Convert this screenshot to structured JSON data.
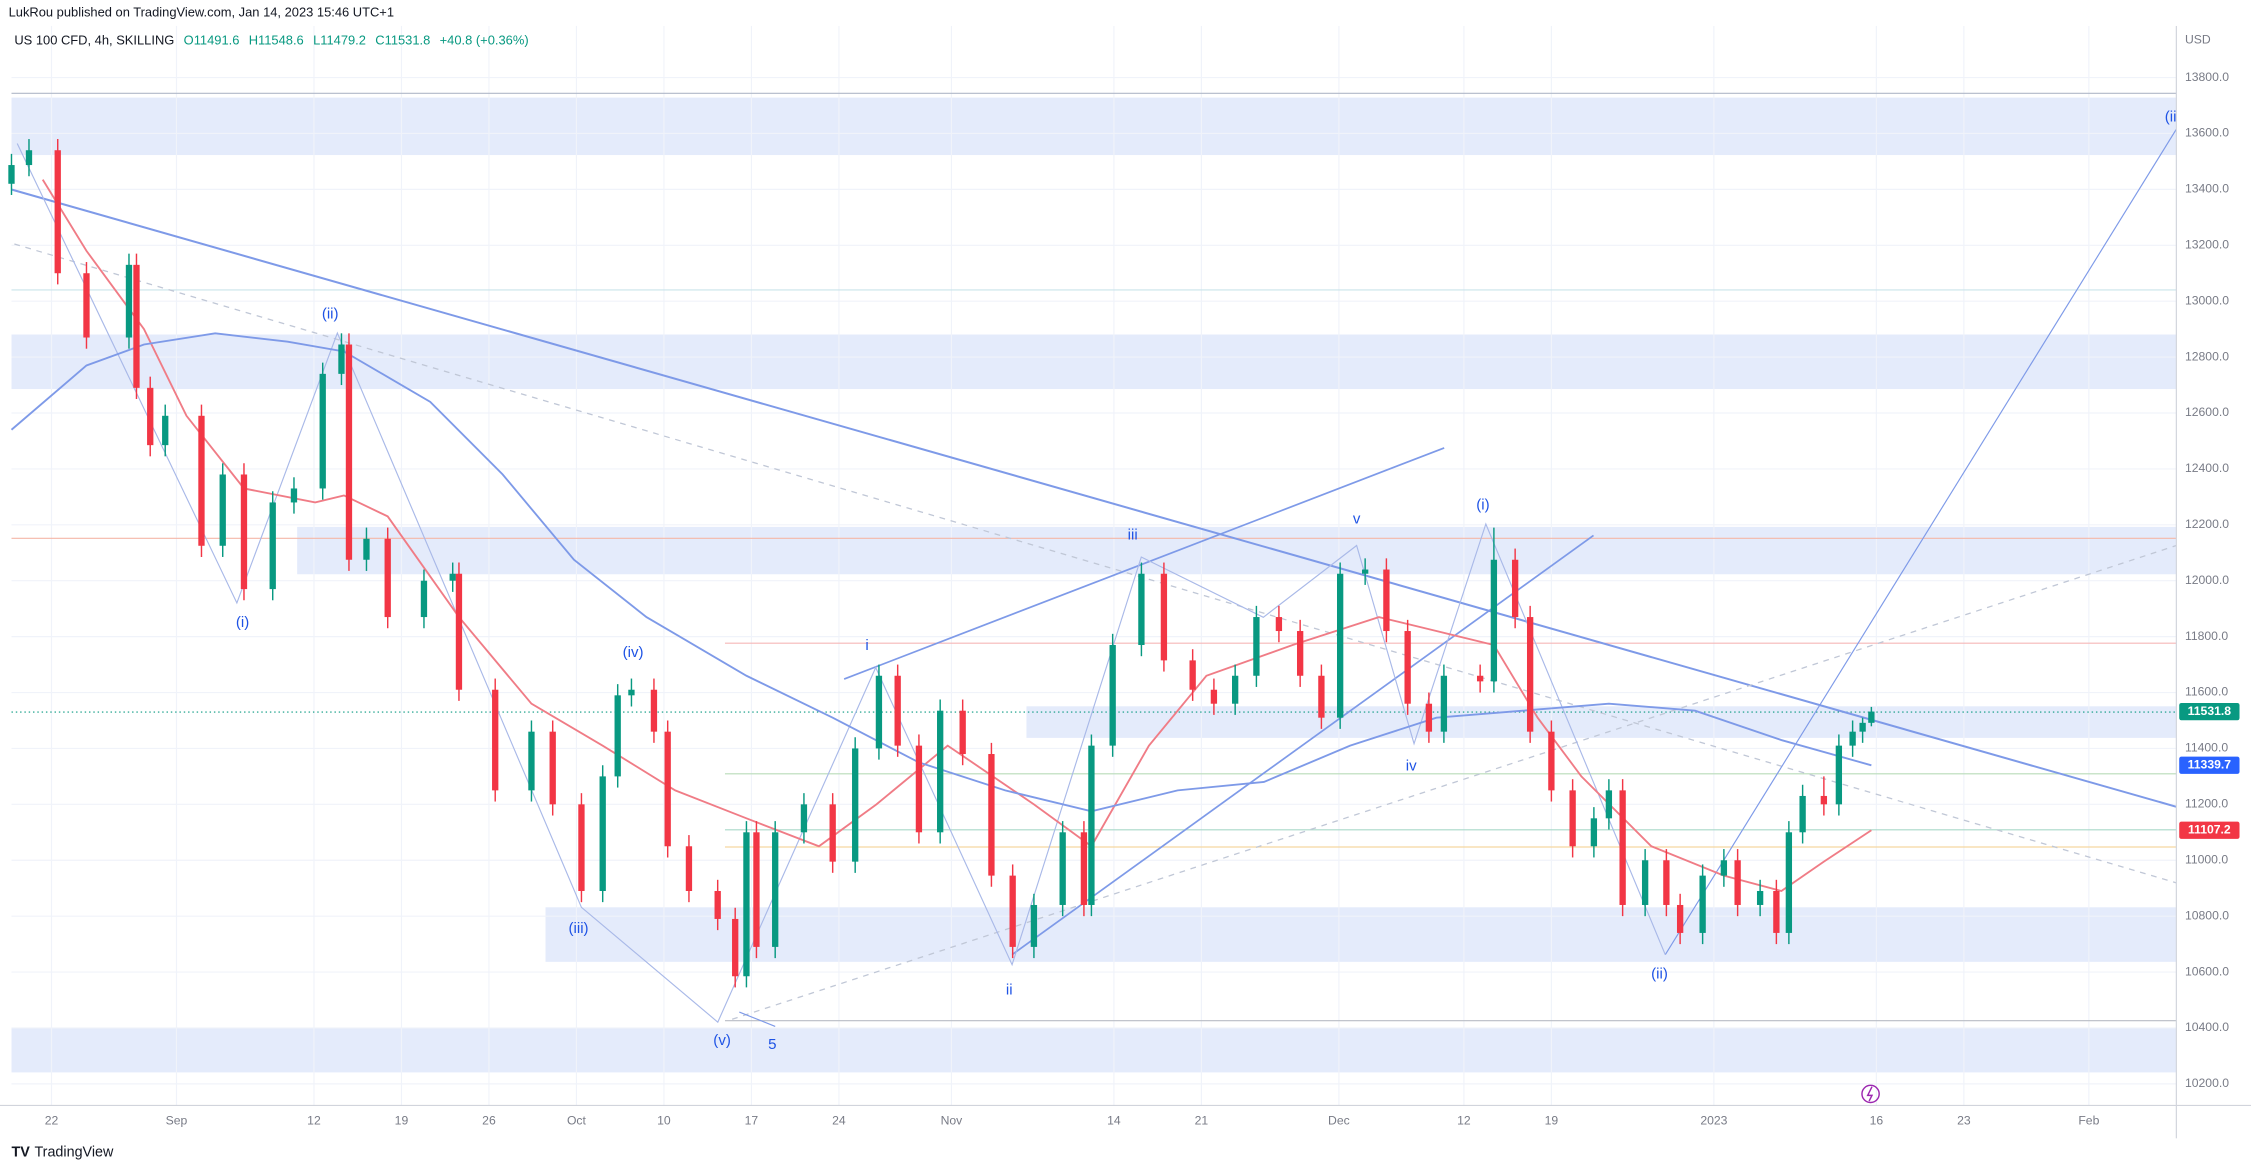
{
  "header": {
    "publisher": "LukRou published on TradingView.com, Jan 14, 2023 15:46 UTC+1",
    "symbol": "US 100 CFD, 4h, SKILLING",
    "ohlc": [
      "O11491.6",
      "H11548.6",
      "L11479.2",
      "C11531.8"
    ],
    "change": "+40.8 (+0.36%)"
  },
  "chart_data": {
    "type": "candlestick",
    "currency": "USD",
    "x": [
      -3.2,
      -1.8,
      0.5,
      2.8,
      6.2,
      6.8,
      7.9,
      9.1,
      12.0,
      13.7,
      15.4,
      17.7,
      19.4,
      21.7,
      23.2,
      23.8,
      25.2,
      26.9,
      29.8,
      32.1,
      32.6,
      35.5,
      38.4,
      40.1,
      42.4,
      44.1,
      45.3,
      46.4,
      48.2,
      49.3,
      51.0,
      53.3,
      54.7,
      55.6,
      56.4,
      57.9,
      60.2,
      62.5,
      64.3,
      66.2,
      67.7,
      69.4,
      71.1,
      72.9,
      75.2,
      76.9,
      78.6,
      80.9,
      82.6,
      83.2,
      84.9,
      87.2,
      89.0,
      91.3,
      93.0,
      94.7,
      96.4,
      98.2,
      99.9,
      101.6,
      103.1,
      105.1,
      106.8,
      108.5,
      110.2,
      111.4,
      114.3,
      115.4,
      117.1,
      118.3,
      120.0,
      121.7,
      123.4,
      124.6,
      125.7,
      127.5,
      129.2,
      130.3,
      132.1,
      133.8,
      134.9,
      136.7,
      138.0,
      139.0,
      140.1,
      141.8,
      143.0,
      144.1,
      144.9,
      145.6
    ],
    "open": [
      13420,
      13487,
      13540,
      13100,
      12870,
      13130,
      12690,
      12485,
      12590,
      12125,
      12380,
      11970,
      12280,
      12330,
      12740,
      12845,
      12075,
      12150,
      11870,
      12000,
      12025,
      11610,
      11250,
      11460,
      11200,
      10890,
      11300,
      11590,
      11610,
      11460,
      11050,
      10890,
      10790,
      10585,
      11100,
      10690,
      11100,
      11200,
      10995,
      11400,
      11660,
      11410,
      11100,
      11535,
      11380,
      10945,
      10690,
      10840,
      11100,
      10840,
      11410,
      11770,
      12025,
      11715,
      11610,
      11560,
      11660,
      11870,
      11820,
      11660,
      11510,
      12025,
      12040,
      11820,
      11560,
      11460,
      11660,
      11640,
      12075,
      11870,
      11460,
      11250,
      11050,
      11150,
      11250,
      10840,
      11000,
      10840,
      10740,
      10945,
      11000,
      10840,
      10890,
      10740,
      11100,
      11230,
      11200,
      11410,
      11460,
      11491.6
    ],
    "high": [
      13527,
      13580,
      13580,
      13140,
      13170,
      13170,
      12730,
      12630,
      12630,
      12420,
      12420,
      12320,
      12370,
      12780,
      12885,
      12885,
      12190,
      12190,
      12040,
      12065,
      12065,
      11650,
      11500,
      11500,
      11240,
      11340,
      11630,
      11650,
      11650,
      11500,
      11090,
      10930,
      10830,
      11140,
      11140,
      11140,
      11240,
      11240,
      11440,
      11700,
      11700,
      11450,
      11575,
      11575,
      11420,
      10985,
      10880,
      11140,
      11140,
      11450,
      11810,
      12065,
      12065,
      11755,
      11650,
      11700,
      11910,
      11910,
      11860,
      11700,
      12065,
      12080,
      12080,
      11860,
      11600,
      11700,
      11700,
      12190,
      12115,
      11910,
      11500,
      11290,
      11190,
      11290,
      11290,
      11040,
      11040,
      10880,
      10985,
      11040,
      11040,
      10930,
      10930,
      11140,
      11270,
      11300,
      11450,
      11500,
      11510,
      11548.6
    ],
    "low": [
      13380,
      13447,
      13060,
      12830,
      12830,
      12650,
      12445,
      12445,
      12085,
      12085,
      11930,
      11930,
      12240,
      12290,
      12700,
      12035,
      12035,
      11830,
      11830,
      11960,
      11570,
      11210,
      11210,
      11160,
      10850,
      10850,
      11260,
      11550,
      11420,
      11010,
      10850,
      10750,
      10545,
      10545,
      10650,
      10650,
      11060,
      10955,
      10955,
      11360,
      11370,
      11060,
      11060,
      11340,
      10905,
      10650,
      10650,
      10800,
      10800,
      10800,
      11370,
      11730,
      11675,
      11570,
      11520,
      11520,
      11620,
      11780,
      11620,
      11470,
      11470,
      11985,
      11780,
      11520,
      11420,
      11420,
      11600,
      11600,
      11830,
      11420,
      11210,
      11010,
      11010,
      11110,
      10800,
      10800,
      10800,
      10700,
      10700,
      10905,
      10800,
      10800,
      10700,
      10700,
      11060,
      11160,
      11160,
      11370,
      11420,
      11479.2
    ],
    "close": [
      13487,
      13540,
      13100,
      12870,
      13130,
      12690,
      12485,
      12590,
      12125,
      12380,
      11970,
      12280,
      12330,
      12740,
      12845,
      12075,
      12150,
      11870,
      12000,
      12025,
      11610,
      11250,
      11460,
      11200,
      10890,
      11300,
      11590,
      11610,
      11460,
      11050,
      10890,
      10790,
      10585,
      11100,
      10690,
      11100,
      11200,
      10995,
      11400,
      11660,
      11410,
      11100,
      11535,
      11380,
      10945,
      10690,
      10840,
      11100,
      10840,
      11410,
      11770,
      12025,
      11715,
      11610,
      11560,
      11660,
      11870,
      11820,
      11660,
      11510,
      12025,
      12040,
      11820,
      11560,
      11460,
      11660,
      11640,
      12075,
      11870,
      11460,
      11250,
      11050,
      11150,
      11250,
      10840,
      11000,
      10840,
      10740,
      10945,
      11000,
      10840,
      10890,
      10740,
      11100,
      11230,
      11200,
      11410,
      11460,
      11491.6,
      11531.8
    ],
    "colors": {
      "up": "#089981",
      "down": "#f23645"
    },
    "xlim": [
      -3.2,
      170
    ],
    "ylim": [
      10123,
      13985
    ],
    "yticks": [
      {
        "value": 10200,
        "label": "10200.0"
      },
      {
        "value": 10400,
        "label": "10400.0"
      },
      {
        "value": 10600,
        "label": "10600.0"
      },
      {
        "value": 10800,
        "label": "10800.0"
      },
      {
        "value": 11000,
        "label": "11000.0"
      },
      {
        "value": 11200,
        "label": "11200.0"
      },
      {
        "value": 11400,
        "label": "11400.0"
      },
      {
        "value": 11600,
        "label": "11600.0"
      },
      {
        "value": 11800,
        "label": "11800.0"
      },
      {
        "value": 12000,
        "label": "12000.0"
      },
      {
        "value": 12200,
        "label": "12200.0"
      },
      {
        "value": 12400,
        "label": "12400.0"
      },
      {
        "value": 12600,
        "label": "12600.0"
      },
      {
        "value": 12800,
        "label": "12800.0"
      },
      {
        "value": 13000,
        "label": "13000.0"
      },
      {
        "value": 13200,
        "label": "13200.0"
      },
      {
        "value": 13400,
        "label": "13400.0"
      },
      {
        "value": 13600,
        "label": "13600.0"
      },
      {
        "value": 13800,
        "label": "13800.0"
      }
    ],
    "xticks": [
      {
        "value": 0,
        "label": "22"
      },
      {
        "value": 10,
        "label": "Sep"
      },
      {
        "value": 21,
        "label": "12"
      },
      {
        "value": 28,
        "label": "19"
      },
      {
        "value": 35,
        "label": "26"
      },
      {
        "value": 42,
        "label": "Oct"
      },
      {
        "value": 49,
        "label": "10"
      },
      {
        "value": 56,
        "label": "17"
      },
      {
        "value": 63,
        "label": "24"
      },
      {
        "value": 72,
        "label": "Nov"
      },
      {
        "value": 85,
        "label": "14"
      },
      {
        "value": 92,
        "label": "21"
      },
      {
        "value": 103,
        "label": "Dec"
      },
      {
        "value": 113,
        "label": "12"
      },
      {
        "value": 120,
        "label": "19"
      },
      {
        "value": 133,
        "label": "2023"
      },
      {
        "value": 146,
        "label": "16"
      },
      {
        "value": 153,
        "label": "23"
      },
      {
        "value": 163,
        "label": "Feb"
      }
    ],
    "ma": [
      {
        "color": "#f07c86",
        "x": [
          -0.7,
          2.8,
          7.4,
          10.8,
          15.4,
          21.1,
          23.4,
          26.9,
          32.6,
          38.4,
          44.1,
          49.9,
          55.6,
          61.4,
          66.0,
          71.7,
          78.6,
          83.2,
          87.8,
          92.4,
          99.3,
          106.2,
          110.8,
          115.4,
          118.9,
          122.4,
          128.0,
          133.8,
          138.4,
          141.8,
          145.6
        ],
        "values": [
          13435,
          13180,
          12900,
          12590,
          12330,
          12280,
          12305,
          12230,
          11870,
          11560,
          11410,
          11250,
          11150,
          11050,
          11200,
          11410,
          11200,
          11050,
          11410,
          11660,
          11770,
          11870,
          11820,
          11770,
          11510,
          11300,
          11050,
          10945,
          10890,
          10995,
          11107.2
        ]
      },
      {
        "color": "#7e9ae8",
        "x": [
          -3.2,
          2.8,
          7.4,
          13.1,
          18.9,
          23.4,
          30.3,
          36.1,
          41.8,
          47.6,
          55.6,
          62.5,
          69.4,
          76.3,
          83.2,
          90.1,
          97.0,
          103.9,
          110.8,
          117.7,
          124.6,
          131.5,
          138.4,
          145.6
        ],
        "values": [
          12540,
          12770,
          12845,
          12885,
          12855,
          12820,
          12640,
          12380,
          12075,
          11870,
          11660,
          11510,
          11350,
          11250,
          11175,
          11250,
          11280,
          11410,
          11510,
          11535,
          11560,
          11535,
          11430,
          11339.7
        ]
      }
    ],
    "price_tags": [
      {
        "value": 11531.8,
        "color": "#089981"
      },
      {
        "value": 11339.7,
        "color": "#2962ff"
      },
      {
        "value": 11107.2,
        "color": "#f23645"
      }
    ],
    "annotations": [
      "(ii)",
      "(i)",
      "(iii)",
      "(iv)",
      "(v)",
      "5",
      "i",
      "ii",
      "iii",
      "v",
      "(i)",
      "iv",
      "(ii)",
      "(ii"
    ]
  },
  "footer": {
    "brand": "TradingView"
  }
}
